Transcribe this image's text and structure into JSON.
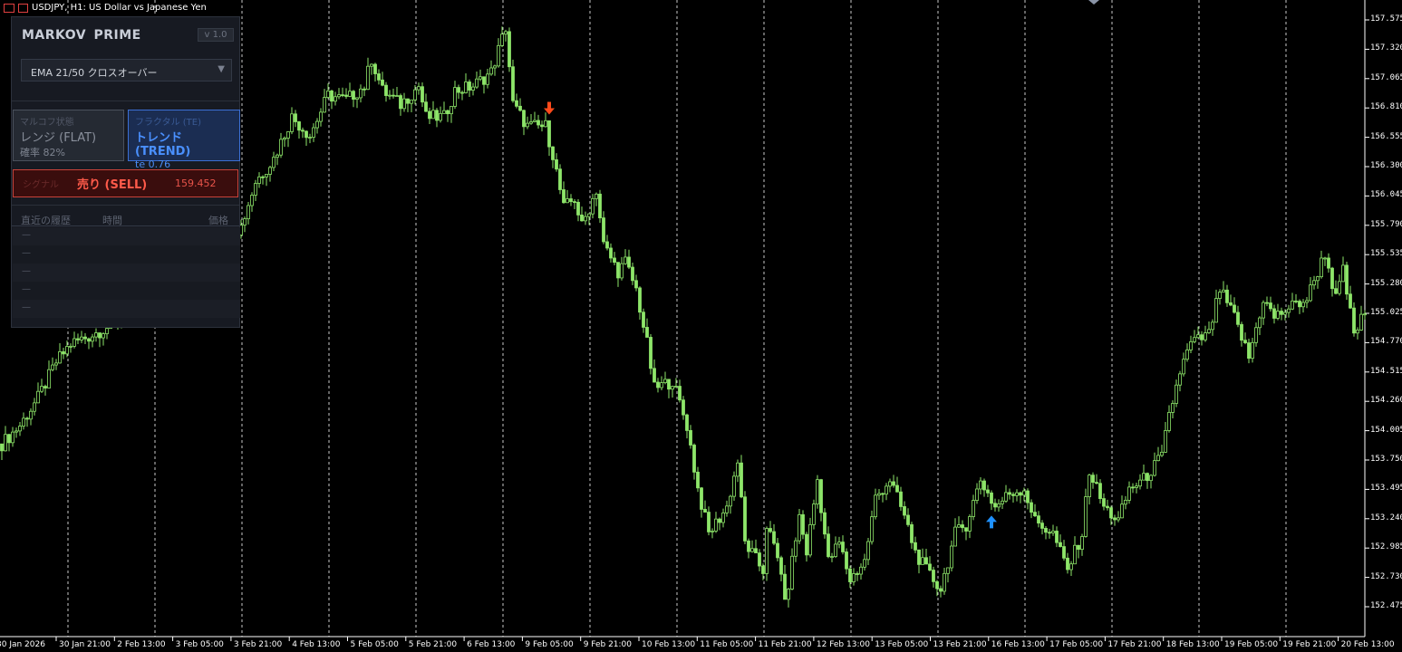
{
  "window": {
    "title": "USDJPY, H1:  US Dollar vs Japanese Yen"
  },
  "colors": {
    "bull": "#8ee66a",
    "sell_arrow": "#ff4a1a",
    "buy_arrow": "#1e90ff",
    "grid": "#c8c8c8",
    "marker": "#8a94a6"
  },
  "price_axis": [
    "157.575",
    "157.320",
    "157.065",
    "156.810",
    "156.555",
    "156.300",
    "156.045",
    "155.790",
    "155.535",
    "155.280",
    "155.025",
    "154.770",
    "154.515",
    "154.260",
    "154.005",
    "153.750",
    "153.495",
    "153.240",
    "152.985",
    "152.730",
    "152.475"
  ],
  "time_axis": [
    "30 Jan 2026",
    "30 Jan 21:00",
    "2 Feb 13:00",
    "3 Feb 05:00",
    "3 Feb 21:00",
    "4 Feb 13:00",
    "5 Feb 05:00",
    "5 Feb 21:00",
    "6 Feb 13:00",
    "9 Feb 05:00",
    "9 Feb 21:00",
    "10 Feb 13:00",
    "11 Feb 05:00",
    "11 Feb 21:00",
    "12 Feb 13:00",
    "13 Feb 05:00",
    "13 Feb 21:00",
    "16 Feb 13:00",
    "17 Feb 05:00",
    "17 Feb 21:00",
    "18 Feb 13:00",
    "19 Feb 05:00",
    "19 Feb 21:00",
    "20 Feb 13:00"
  ],
  "price_series": {
    "bar": [
      0,
      5,
      10,
      15,
      19,
      25,
      30,
      40,
      66,
      70,
      75,
      80,
      85,
      90,
      95,
      100,
      102,
      105,
      110,
      115,
      117,
      122,
      125,
      130,
      135,
      139,
      141,
      145,
      150,
      152,
      155,
      158,
      160,
      164,
      166,
      170,
      172,
      175,
      178,
      180,
      185,
      189,
      192,
      195,
      200,
      203,
      205,
      210,
      211,
      215,
      216,
      220,
      222,
      225,
      228,
      231,
      234,
      238,
      241,
      245,
      249,
      252,
      255,
      259,
      263,
      266,
      270,
      274,
      278,
      282,
      285,
      290,
      294,
      298,
      300,
      304,
      308,
      311,
      315,
      320,
      322,
      325,
      328,
      333,
      336,
      340,
      344,
      348,
      351,
      355,
      360,
      365,
      368,
      370,
      373,
      376
    ],
    "close": [
      153.89,
      154.05,
      154.29,
      154.6,
      154.76,
      154.84,
      154.92,
      155.15,
      155.78,
      156.17,
      156.37,
      156.73,
      156.57,
      156.92,
      156.88,
      157.0,
      157.24,
      156.96,
      156.84,
      157.0,
      156.73,
      156.73,
      156.96,
      157.0,
      157.12,
      157.51,
      156.84,
      156.65,
      156.65,
      156.41,
      155.94,
      156.02,
      155.78,
      156.1,
      155.62,
      155.39,
      155.47,
      155.23,
      154.76,
      154.37,
      154.44,
      154.05,
      153.5,
      153.11,
      153.34,
      153.74,
      153.03,
      152.79,
      153.19,
      152.79,
      152.48,
      153.26,
      152.95,
      153.58,
      152.87,
      153.03,
      152.71,
      152.87,
      153.42,
      153.58,
      153.26,
      152.95,
      152.79,
      152.63,
      153.11,
      153.19,
      153.58,
      153.34,
      153.46,
      153.5,
      153.22,
      153.11,
      152.79,
      153.11,
      153.66,
      153.34,
      153.22,
      153.5,
      153.58,
      153.78,
      154.13,
      154.52,
      154.76,
      154.84,
      155.23,
      154.99,
      154.64,
      155.15,
      154.99,
      155.07,
      155.15,
      155.55,
      155.15,
      155.39,
      154.84,
      155.03
    ]
  },
  "signals": [
    {
      "type": "sell",
      "bar": 151,
      "price": 156.8
    },
    {
      "type": "buy",
      "bar": 273,
      "price": 153.22
    }
  ],
  "panel": {
    "title": "MARKOV  PRIME",
    "version": "v 1.0",
    "strategy": "EMA 21/50 クロスオーバー",
    "markov": {
      "label": "マルコフ状態",
      "state": "レンジ (FLAT)",
      "prob": "確率 82%"
    },
    "fractal": {
      "label": "フラクタル (TE)",
      "state": "トレンド (TREND)",
      "te": "te 0.76"
    },
    "signal": {
      "label": "シグナル",
      "value": "売り (SELL)",
      "price": "159.452"
    },
    "history": {
      "col_recent": "直近の履歴",
      "col_time": "時間",
      "col_price": "価格",
      "rows": [
        "—",
        "—",
        "—",
        "—",
        "—"
      ]
    }
  }
}
